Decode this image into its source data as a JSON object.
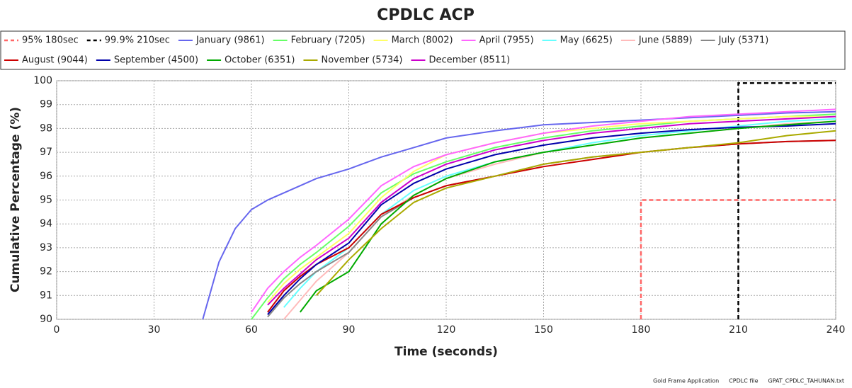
{
  "chart_data": {
    "type": "line",
    "title": "CPDLC ACP",
    "x_label": "Time (seconds)",
    "y_label": "Cumulative Percentage (%)",
    "xlim": [
      0,
      240
    ],
    "xticks": [
      0,
      30,
      60,
      90,
      120,
      150,
      180,
      210,
      240
    ],
    "ylim": [
      90,
      100
    ],
    "yticks": [
      90,
      91,
      92,
      93,
      94,
      95,
      96,
      97,
      98,
      99,
      100
    ],
    "grid": true,
    "x": [
      45,
      50,
      55,
      60,
      65,
      70,
      75,
      80,
      90,
      100,
      110,
      120,
      135,
      150,
      165,
      180,
      195,
      210,
      225,
      240
    ],
    "series": [
      {
        "name": "95% 180sec",
        "color": "#ff6666",
        "style": "dashed",
        "x": [
          180,
          180,
          240
        ],
        "values": [
          90,
          95,
          95
        ]
      },
      {
        "name": "99.9% 210sec",
        "color": "#000000",
        "style": "dashed",
        "x": [
          210,
          210,
          240
        ],
        "values": [
          90,
          99.9,
          99.9
        ]
      },
      {
        "name": "January (9861)",
        "color": "#6666ee",
        "values": [
          90,
          92.4,
          93.8,
          94.6,
          95.0,
          95.3,
          95.6,
          95.9,
          96.3,
          96.8,
          97.2,
          97.6,
          97.9,
          98.15,
          98.25,
          98.35,
          98.45,
          98.55,
          98.65,
          98.7
        ]
      },
      {
        "name": "February (7205)",
        "color": "#66ff66",
        "values": [
          null,
          null,
          null,
          90.0,
          90.9,
          91.7,
          92.3,
          92.8,
          93.9,
          95.3,
          96.1,
          96.6,
          97.2,
          97.6,
          97.9,
          98.1,
          98.3,
          98.4,
          98.5,
          98.6
        ]
      },
      {
        "name": "March (8002)",
        "color": "#ffff66",
        "values": [
          null,
          null,
          null,
          null,
          90.7,
          91.5,
          92.1,
          92.6,
          93.6,
          95.1,
          96.2,
          96.9,
          97.4,
          97.8,
          98.0,
          98.2,
          98.3,
          98.4,
          98.5,
          98.5
        ]
      },
      {
        "name": "April (7955)",
        "color": "#ff66ff",
        "values": [
          null,
          null,
          null,
          90.3,
          91.3,
          92.0,
          92.6,
          93.1,
          94.2,
          95.6,
          96.4,
          96.9,
          97.4,
          97.8,
          98.1,
          98.3,
          98.5,
          98.6,
          98.7,
          98.8
        ]
      },
      {
        "name": "May (6625)",
        "color": "#66ffff",
        "values": [
          null,
          null,
          null,
          null,
          null,
          90.5,
          91.3,
          92.0,
          93.0,
          94.4,
          95.4,
          96.0,
          96.6,
          97.0,
          97.4,
          97.7,
          97.9,
          98.1,
          98.3,
          98.4
        ]
      },
      {
        "name": "June (5889)",
        "color": "#ffbbbb",
        "values": [
          null,
          null,
          null,
          null,
          null,
          90.0,
          90.8,
          91.6,
          92.8,
          94.3,
          95.2,
          95.9,
          96.5,
          97.0,
          97.3,
          97.6,
          97.8,
          98.0,
          98.2,
          98.3
        ]
      },
      {
        "name": "July (5371)",
        "color": "#888888",
        "values": [
          null,
          null,
          null,
          null,
          90.1,
          90.9,
          91.5,
          92.0,
          92.8,
          94.3,
          95.1,
          95.6,
          96.0,
          96.5,
          96.8,
          97.0,
          97.2,
          97.35,
          97.45,
          97.5
        ]
      },
      {
        "name": "August (9044)",
        "color": "#cc0000",
        "values": [
          null,
          null,
          null,
          null,
          90.3,
          91.2,
          91.8,
          92.3,
          93.0,
          94.4,
          95.1,
          95.6,
          96.0,
          96.4,
          96.7,
          97.0,
          97.2,
          97.35,
          97.45,
          97.5
        ]
      },
      {
        "name": "September (4500)",
        "color": "#0000aa",
        "values": [
          null,
          null,
          null,
          null,
          90.2,
          91.0,
          91.7,
          92.3,
          93.2,
          94.8,
          95.7,
          96.3,
          96.9,
          97.3,
          97.6,
          97.8,
          97.95,
          98.05,
          98.1,
          98.2
        ]
      },
      {
        "name": "October (6351)",
        "color": "#00aa00",
        "values": [
          null,
          null,
          null,
          null,
          null,
          null,
          90.3,
          91.2,
          92.0,
          94.0,
          95.2,
          95.9,
          96.6,
          97.0,
          97.3,
          97.6,
          97.8,
          98.0,
          98.15,
          98.3
        ]
      },
      {
        "name": "November (5734)",
        "color": "#aaaa00",
        "values": [
          null,
          null,
          null,
          null,
          null,
          null,
          null,
          91.0,
          92.5,
          93.8,
          94.9,
          95.5,
          96.0,
          96.5,
          96.8,
          97.0,
          97.2,
          97.4,
          97.7,
          97.9
        ]
      },
      {
        "name": "December (8511)",
        "color": "#cc00cc",
        "values": [
          null,
          null,
          null,
          null,
          90.6,
          91.3,
          91.9,
          92.5,
          93.4,
          94.9,
          95.9,
          96.5,
          97.1,
          97.5,
          97.8,
          98.0,
          98.2,
          98.3,
          98.4,
          98.5
        ]
      }
    ],
    "footer": [
      "Gold Frame Application",
      "CPDLC file",
      "GPAT_CPDLC_TAHUNAN.txt"
    ]
  }
}
